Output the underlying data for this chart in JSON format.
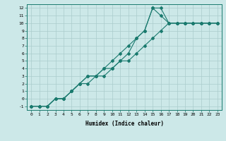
{
  "line1_x": [
    0,
    1,
    2,
    3,
    4,
    5,
    6,
    7,
    8,
    9,
    10,
    11,
    12,
    13,
    14,
    15,
    16,
    17,
    18,
    19,
    20,
    21,
    22,
    23
  ],
  "line1_y": [
    -1,
    -1,
    -1,
    0,
    0,
    1,
    2,
    3,
    3,
    4,
    4,
    5,
    6,
    8,
    9,
    12,
    12,
    10,
    10,
    10,
    10,
    10,
    10,
    10
  ],
  "line2_x": [
    0,
    1,
    2,
    3,
    4,
    5,
    6,
    7,
    8,
    9,
    10,
    11,
    12,
    13,
    14,
    15,
    16,
    17,
    18,
    19,
    20,
    21,
    22,
    23
  ],
  "line2_y": [
    -1,
    -1,
    -1,
    0,
    0,
    1,
    2,
    3,
    3,
    4,
    5,
    6,
    7,
    8,
    9,
    12,
    11,
    10,
    10,
    10,
    10,
    10,
    10,
    10
  ],
  "line3_x": [
    0,
    1,
    2,
    3,
    4,
    5,
    6,
    7,
    8,
    9,
    10,
    11,
    12,
    13,
    14,
    15,
    16,
    17,
    18,
    19,
    20,
    21,
    22,
    23
  ],
  "line3_y": [
    -1,
    -1,
    -1,
    0,
    0,
    1,
    2,
    2,
    3,
    3,
    4,
    5,
    5,
    6,
    7,
    8,
    9,
    10,
    10,
    10,
    10,
    10,
    10,
    10
  ],
  "line_color": "#1a7a6e",
  "bg_color": "#cce8e8",
  "grid_color": "#aacccc",
  "xlabel": "Humidex (Indice chaleur)",
  "xlim": [
    -0.5,
    23.5
  ],
  "ylim": [
    -1.5,
    12.5
  ],
  "xticks": [
    0,
    1,
    2,
    3,
    4,
    5,
    6,
    7,
    8,
    9,
    10,
    11,
    12,
    13,
    14,
    15,
    16,
    17,
    18,
    19,
    20,
    21,
    22,
    23
  ],
  "yticks": [
    -1,
    0,
    1,
    2,
    3,
    4,
    5,
    6,
    7,
    8,
    9,
    10,
    11,
    12
  ],
  "marker": "D",
  "marker_size": 2.0,
  "line_width": 0.8,
  "tick_fontsize": 4.5,
  "xlabel_fontsize": 5.5
}
